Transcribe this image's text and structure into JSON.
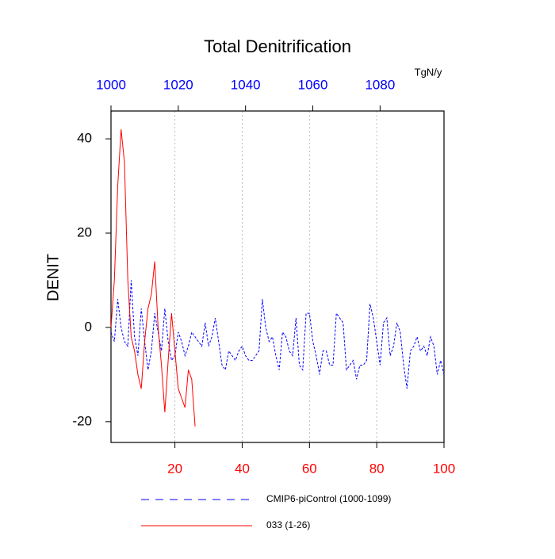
{
  "chart_data": {
    "type": "line",
    "title": "Total Denitrification",
    "y_label": "DENIT",
    "units": "TgN/y",
    "xlim": [
      1,
      100
    ],
    "xticks": [
      20,
      40,
      60,
      80,
      100
    ],
    "xtick_color": "#ff0000",
    "x2lim": [
      1000,
      1099
    ],
    "x2ticks": [
      1000,
      1020,
      1040,
      1060,
      1080
    ],
    "x2tick_color": "#0000ff",
    "ylim": [
      -24.4,
      45.9
    ],
    "yticks": [
      -20,
      0,
      20,
      40
    ],
    "grid": true,
    "series": [
      {
        "name": "CMIP6-piControl (1000-1099)",
        "color": "#0000ff",
        "dash": true,
        "x": [
          1,
          2,
          3,
          4,
          5,
          6,
          7,
          8,
          9,
          10,
          11,
          12,
          13,
          14,
          15,
          16,
          17,
          18,
          19,
          20,
          21,
          22,
          23,
          24,
          25,
          26,
          27,
          28,
          29,
          30,
          31,
          32,
          33,
          34,
          35,
          36,
          37,
          38,
          39,
          40,
          41,
          42,
          43,
          44,
          45,
          46,
          47,
          48,
          49,
          50,
          51,
          52,
          53,
          54,
          55,
          56,
          57,
          58,
          59,
          60,
          61,
          62,
          63,
          64,
          65,
          66,
          67,
          68,
          69,
          70,
          71,
          72,
          73,
          74,
          75,
          76,
          77,
          78,
          79,
          80,
          81,
          82,
          83,
          84,
          85,
          86,
          87,
          88,
          89,
          90,
          91,
          92,
          93,
          94,
          95,
          96,
          97,
          98,
          99,
          100
        ],
        "values": [
          -1,
          -3,
          6,
          0,
          -3,
          -4,
          10,
          -2,
          -6,
          4,
          -3,
          -9,
          -5,
          3,
          -1,
          -5,
          4,
          -3,
          -7,
          -6,
          -1,
          -3,
          -6,
          -4,
          -1,
          -2,
          -3,
          -4,
          1,
          -4,
          -2,
          2,
          -3,
          -8,
          -9,
          -5,
          -6,
          -7,
          -5,
          -4,
          -6,
          -7,
          -7,
          -6,
          -5,
          6,
          0,
          -3,
          -2,
          -6,
          -9,
          -1,
          -2,
          -5,
          -6,
          2,
          -8,
          -9,
          3,
          3,
          -3,
          -6,
          -10,
          -5,
          -5,
          -8,
          -8,
          3,
          2,
          1,
          -9,
          -8,
          -7,
          -11,
          -8,
          -8,
          -7,
          5,
          2,
          -3,
          -8,
          1,
          2,
          -6,
          -4,
          1,
          -1,
          -8,
          -13,
          -5,
          -4,
          -2,
          -5,
          -4,
          -6,
          -2,
          -4,
          -10,
          -7,
          -10
        ]
      },
      {
        "name": "033 (1-26)",
        "color": "#ff0000",
        "dash": false,
        "x": [
          1,
          2,
          3,
          4,
          5,
          6,
          7,
          8,
          9,
          10,
          11,
          12,
          13,
          14,
          15,
          16,
          17,
          18,
          19,
          20,
          21,
          22,
          23,
          24,
          25,
          26
        ],
        "values": [
          0,
          10,
          30,
          42,
          35,
          10,
          -2,
          -5,
          -10,
          -13,
          -3,
          4,
          7,
          14,
          0,
          -8,
          -18,
          -7,
          3,
          -5,
          -13,
          -15,
          -17,
          -9,
          -11,
          -21
        ]
      }
    ]
  }
}
